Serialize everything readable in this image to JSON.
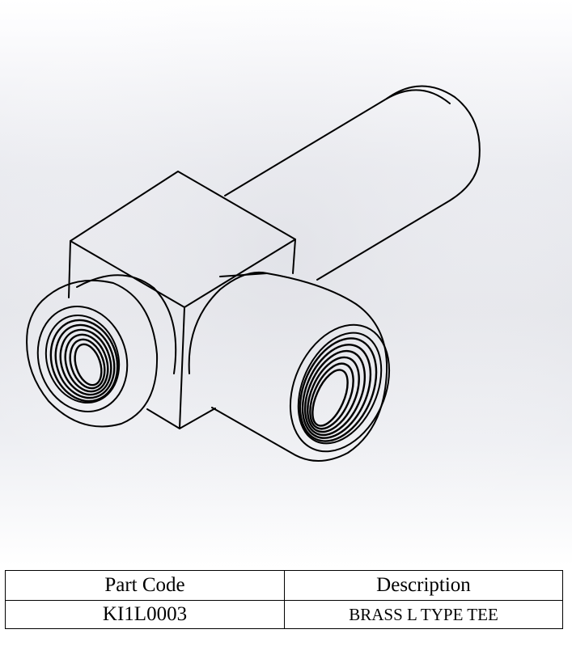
{
  "table": {
    "headers": {
      "part_code": "Part Code",
      "description": "Description"
    },
    "rows": [
      {
        "part_code": "KI1L0003",
        "description": "BRASS L TYPE TEE"
      }
    ]
  },
  "colors": {
    "line": "#000000",
    "background_light": "#ffffff",
    "background_mid": "#e4e5ea"
  }
}
